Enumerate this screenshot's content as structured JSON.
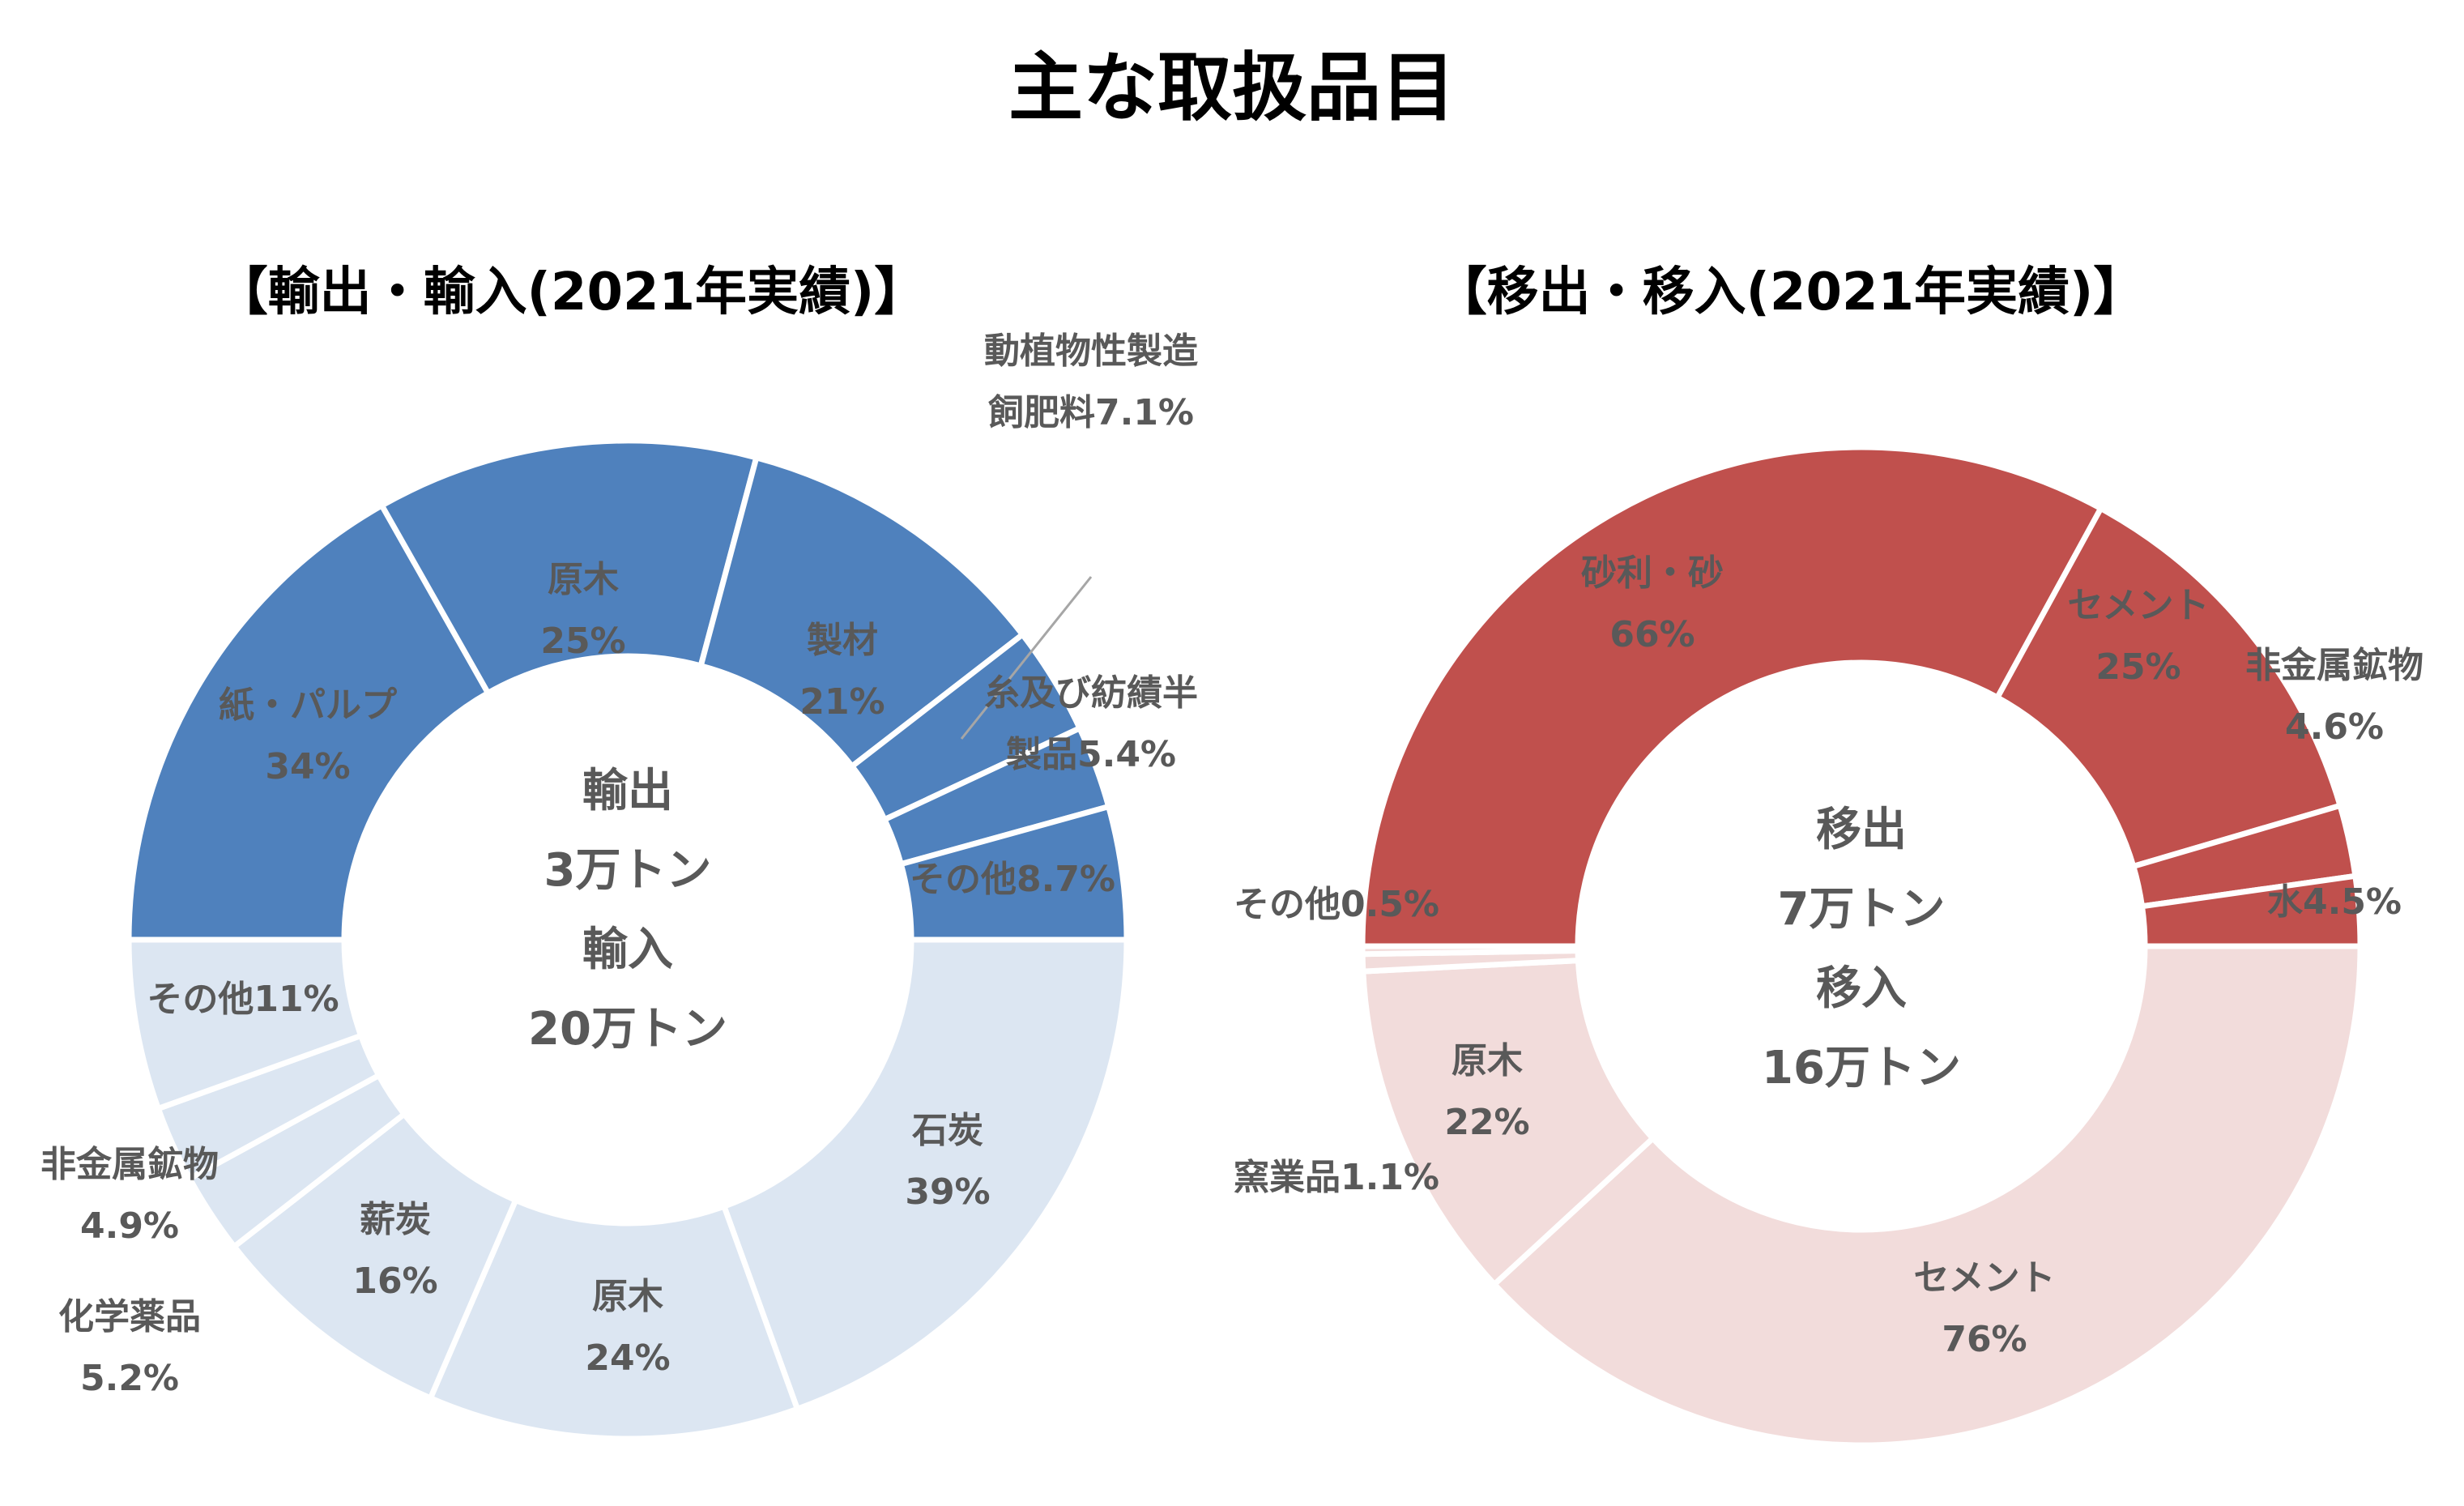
{
  "title": "主な取扱品目",
  "chart_data": [
    {
      "type": "donut",
      "title": "【輸出・輸入(2021年実績)】",
      "center_labels": [
        "輸出",
        "3万トン",
        "輸入",
        "20万トン"
      ],
      "colors": {
        "outer": "#4F81BD",
        "inner": "#DCE6F2",
        "border": "#ffffff",
        "leader": "#A6A6A6"
      },
      "series": [
        {
          "name": "輸出",
          "slices": [
            {
              "category": "紙・パルプ",
              "value": 34,
              "label_lines": [
                "紙・パルプ",
                "34%"
              ]
            },
            {
              "category": "原木",
              "value": 25,
              "label_lines": [
                "原木",
                "25%"
              ]
            },
            {
              "category": "製材",
              "value": 21,
              "label_lines": [
                "製材",
                "21%"
              ]
            },
            {
              "category": "動植物性製造飼肥料",
              "value": 7.1,
              "label_lines": [
                "動植物性製造",
                "飼肥料7.1%"
              ]
            },
            {
              "category": "糸及び紡績半製品",
              "value": 5.4,
              "label_lines": [
                "糸及び紡績半",
                "製品5.4%"
              ]
            },
            {
              "category": "その他",
              "value": 8.7,
              "label_lines": [
                "その他8.7%"
              ]
            }
          ]
        },
        {
          "name": "輸入",
          "slices": [
            {
              "category": "石炭",
              "value": 39,
              "label_lines": [
                "石炭",
                "39%"
              ]
            },
            {
              "category": "原木",
              "value": 24,
              "label_lines": [
                "原木",
                "24%"
              ]
            },
            {
              "category": "薪炭",
              "value": 16,
              "label_lines": [
                "薪炭",
                "16%"
              ]
            },
            {
              "category": "化学薬品",
              "value": 5.2,
              "label_lines": [
                "化学薬品",
                "5.2%"
              ]
            },
            {
              "category": "非金属鉱物",
              "value": 4.9,
              "label_lines": [
                "非金属鉱物",
                "4.9%"
              ]
            },
            {
              "category": "その他",
              "value": 11,
              "label_lines": [
                "その他11%"
              ]
            }
          ]
        }
      ]
    },
    {
      "type": "donut",
      "title": "【移出・移入(2021年実績)】",
      "center_labels": [
        "移出",
        "7万トン",
        "移入",
        "16万トン"
      ],
      "colors": {
        "outer": "#C0504D",
        "inner": "#F2DCDB",
        "border": "#ffffff",
        "leader": "#A6A6A6"
      },
      "series": [
        {
          "name": "移出",
          "slices": [
            {
              "category": "砂利・砂",
              "value": 66,
              "label_lines": [
                "砂利・砂",
                "66%"
              ]
            },
            {
              "category": "セメント",
              "value": 25,
              "label_lines": [
                "セメント",
                "25%"
              ]
            },
            {
              "category": "非金属鉱物",
              "value": 4.6,
              "label_lines": [
                "非金属鉱物",
                "4.6%"
              ]
            },
            {
              "category": "水",
              "value": 4.5,
              "label_lines": [
                "水4.5%"
              ]
            }
          ]
        },
        {
          "name": "移入",
          "slices": [
            {
              "category": "セメント",
              "value": 76,
              "label_lines": [
                "セメント",
                "76%"
              ]
            },
            {
              "category": "原木",
              "value": 22,
              "label_lines": [
                "原木",
                "22%"
              ]
            },
            {
              "category": "窯業品",
              "value": 1.1,
              "label_lines": [
                "窯業品1.1%"
              ]
            },
            {
              "category": "その他",
              "value": 0.5,
              "label_lines": [
                "その他0.5%"
              ]
            }
          ]
        }
      ]
    }
  ]
}
